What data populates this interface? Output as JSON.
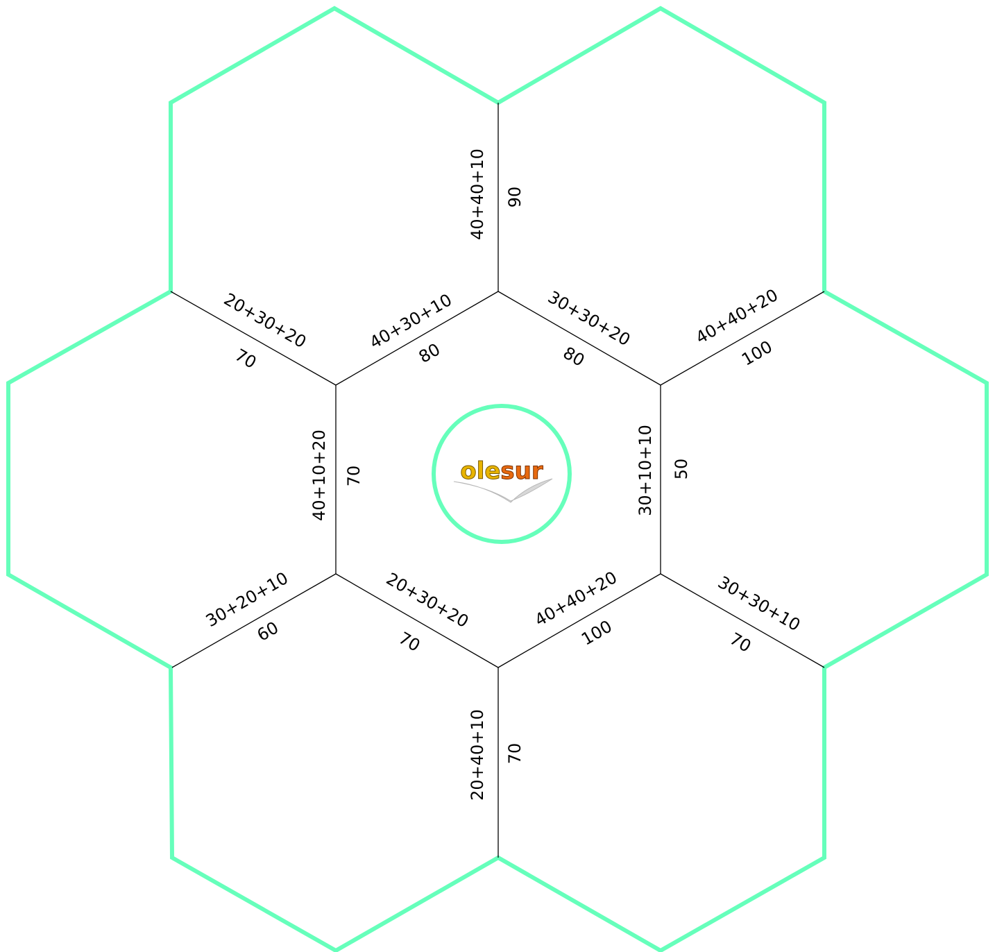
{
  "colors": {
    "outline": "#66ffbb",
    "line": "#000000",
    "logo_ole": "#e8b400",
    "logo_sur": "#e86a10"
  },
  "logo": {
    "text_part1": "ole",
    "text_part2": "sur"
  },
  "edges": [
    {
      "id": "top",
      "expression": "40+40+10",
      "answer": "90"
    },
    {
      "id": "upper-left-outer",
      "expression": "20+30+20",
      "answer": "70"
    },
    {
      "id": "upper-left-inner",
      "expression": "40+30+10",
      "answer": "80"
    },
    {
      "id": "upper-right-inner",
      "expression": "30+30+20",
      "answer": "80"
    },
    {
      "id": "upper-right-outer",
      "expression": "40+40+20",
      "answer": "100"
    },
    {
      "id": "left",
      "expression": "40+10+20",
      "answer": "70"
    },
    {
      "id": "right",
      "expression": "30+10+10",
      "answer": "50"
    },
    {
      "id": "lower-left-outer",
      "expression": "30+20+10",
      "answer": "60"
    },
    {
      "id": "lower-left-inner",
      "expression": "20+30+20",
      "answer": "70"
    },
    {
      "id": "lower-right-inner",
      "expression": "40+40+20",
      "answer": "100"
    },
    {
      "id": "lower-right-outer",
      "expression": "30+30+10",
      "answer": "70"
    },
    {
      "id": "bottom",
      "expression": "20+40+10",
      "answer": "70"
    }
  ]
}
